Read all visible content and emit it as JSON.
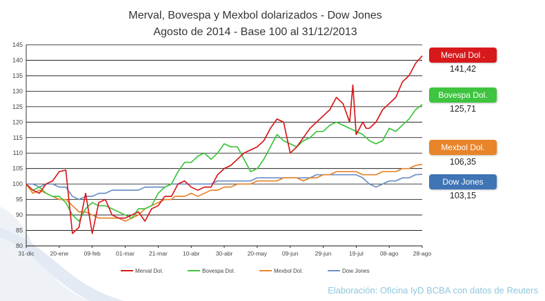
{
  "title": "Merval, Bovespa y Mexbol dolarizados - Dow Jones",
  "subtitle": "Agosto de 2014 - Base 100 al 31/12/2013",
  "credit": "Elaboración: Oficina IyD BCBA con datos de Reuters",
  "callouts": [
    {
      "label": "Merval Dol .",
      "value": "141,42",
      "color": "#d7191c"
    },
    {
      "label": "Bovespa Dol.",
      "value": "125,71",
      "color": "#3ec43e"
    },
    {
      "label": "Mexbol Dol.",
      "value": "106,35",
      "color": "#e8842a"
    },
    {
      "label": "Dow Jones",
      "value": "103,15",
      "color": "#3f74b5"
    }
  ],
  "chart_data": {
    "type": "line",
    "title": "Merval, Bovespa y Mexbol dolarizados - Dow Jones",
    "subtitle": "Agosto de 2014 - Base 100 al 31/12/2013",
    "ylim": [
      80,
      145
    ],
    "yticks": [
      80,
      85,
      90,
      95,
      100,
      105,
      110,
      115,
      120,
      125,
      130,
      135,
      140,
      145
    ],
    "x_tick_labels": [
      "31-dic",
      "20-ene",
      "09-feb",
      "01-mar",
      "21-mar",
      "10-abr",
      "30-abr",
      "20-may",
      "09-jun",
      "29-jun",
      "19-jul",
      "08-ago",
      "28-ago"
    ],
    "grid": true,
    "legend_position": "bottom",
    "series": [
      {
        "name": "Merval Dol.",
        "color": "#d7191c",
        "x": [
          0,
          4,
          8,
          12,
          16,
          20,
          24,
          28,
          32,
          36,
          40,
          44,
          48,
          52,
          56,
          60,
          64,
          68,
          72,
          76,
          80,
          84,
          88,
          90,
          92,
          96,
          100,
          104,
          108,
          112,
          116,
          120,
          124,
          128,
          132,
          136,
          140,
          144,
          148,
          152,
          156,
          160,
          164,
          168,
          172,
          176,
          180,
          184,
          188,
          192,
          196,
          198,
          200,
          204,
          206,
          208,
          212,
          216,
          220,
          224,
          228,
          232,
          236,
          240
        ],
        "y": [
          100,
          98,
          97,
          100,
          101,
          104,
          104.5,
          84,
          86,
          97,
          84,
          94,
          95,
          90,
          89,
          89,
          90,
          91,
          88,
          92,
          93,
          96,
          96,
          98,
          100,
          101,
          99,
          98,
          99,
          99,
          103,
          105,
          106,
          108,
          110,
          111,
          112,
          114,
          118,
          121,
          120,
          110,
          112,
          115,
          118,
          120,
          122,
          124,
          128,
          126,
          120,
          132,
          116,
          120,
          118,
          118,
          120,
          124,
          126,
          128,
          133,
          135,
          139,
          141.42
        ]
      },
      {
        "name": "Bovespa Dol.",
        "color": "#3ec43e",
        "x": [
          0,
          4,
          8,
          12,
          16,
          20,
          24,
          28,
          32,
          36,
          40,
          44,
          48,
          52,
          56,
          60,
          64,
          68,
          72,
          76,
          80,
          84,
          88,
          90,
          92,
          96,
          100,
          104,
          108,
          112,
          116,
          120,
          124,
          128,
          132,
          136,
          140,
          144,
          148,
          152,
          156,
          160,
          164,
          168,
          172,
          176,
          180,
          184,
          188,
          192,
          196,
          200,
          204,
          208,
          212,
          216,
          220,
          224,
          228,
          232,
          236,
          240
        ],
        "y": [
          100,
          98,
          99,
          97,
          96,
          96,
          94,
          90,
          88,
          92,
          94,
          93,
          93,
          92,
          91,
          90,
          89,
          92,
          92,
          93,
          97,
          99,
          100,
          102,
          104,
          107,
          107,
          109,
          110,
          108,
          110,
          113,
          112,
          112,
          108,
          104,
          105,
          108,
          112,
          116,
          114,
          113,
          112,
          114,
          115,
          117,
          117,
          119,
          120,
          119,
          118,
          117,
          116,
          114,
          113,
          114,
          118,
          117,
          119,
          121,
          124,
          125.71
        ]
      },
      {
        "name": "Mexbol Dol.",
        "color": "#e8842a",
        "x": [
          0,
          4,
          8,
          12,
          16,
          20,
          24,
          28,
          32,
          36,
          40,
          44,
          48,
          52,
          56,
          60,
          64,
          68,
          72,
          76,
          80,
          84,
          88,
          90,
          92,
          96,
          100,
          104,
          108,
          112,
          116,
          120,
          124,
          128,
          132,
          136,
          140,
          144,
          148,
          152,
          156,
          160,
          164,
          168,
          172,
          176,
          180,
          184,
          188,
          192,
          196,
          200,
          204,
          208,
          212,
          216,
          220,
          224,
          228,
          232,
          236,
          240
        ],
        "y": [
          100,
          97,
          98,
          97,
          96,
          95,
          95,
          93,
          91,
          91,
          90,
          89,
          89,
          89,
          89,
          88,
          89,
          90,
          92,
          93,
          94,
          95,
          95,
          96,
          96,
          96,
          97,
          96,
          97,
          98,
          98,
          99,
          99,
          100,
          100,
          100,
          101,
          101,
          101,
          101,
          102,
          102,
          102,
          101,
          102,
          102,
          103,
          103,
          104,
          104,
          104,
          104,
          103,
          103,
          103,
          104,
          104,
          104,
          105,
          105,
          106,
          106.35
        ]
      },
      {
        "name": "Dow Jones",
        "color": "#6b8fc4",
        "x": [
          0,
          4,
          8,
          12,
          16,
          20,
          24,
          28,
          32,
          36,
          40,
          44,
          48,
          52,
          56,
          60,
          64,
          68,
          72,
          76,
          80,
          84,
          88,
          90,
          92,
          96,
          100,
          104,
          108,
          112,
          116,
          120,
          124,
          128,
          132,
          136,
          140,
          144,
          148,
          152,
          156,
          160,
          164,
          168,
          172,
          176,
          180,
          184,
          188,
          192,
          196,
          200,
          204,
          208,
          212,
          216,
          220,
          224,
          228,
          232,
          236,
          240
        ],
        "y": [
          100,
          100,
          99,
          100,
          100,
          99,
          99,
          96,
          95,
          96,
          96,
          97,
          97,
          98,
          98,
          98,
          98,
          98,
          99,
          99,
          99,
          99,
          100,
          100,
          100,
          100,
          100,
          100,
          100,
          100,
          101,
          101,
          101,
          101,
          101,
          101,
          102,
          102,
          102,
          102,
          102,
          102,
          102,
          102,
          102,
          103,
          103,
          103,
          103,
          103,
          103,
          103,
          102,
          100,
          99,
          100,
          101,
          101,
          102,
          102,
          103,
          103.15
        ]
      }
    ]
  }
}
